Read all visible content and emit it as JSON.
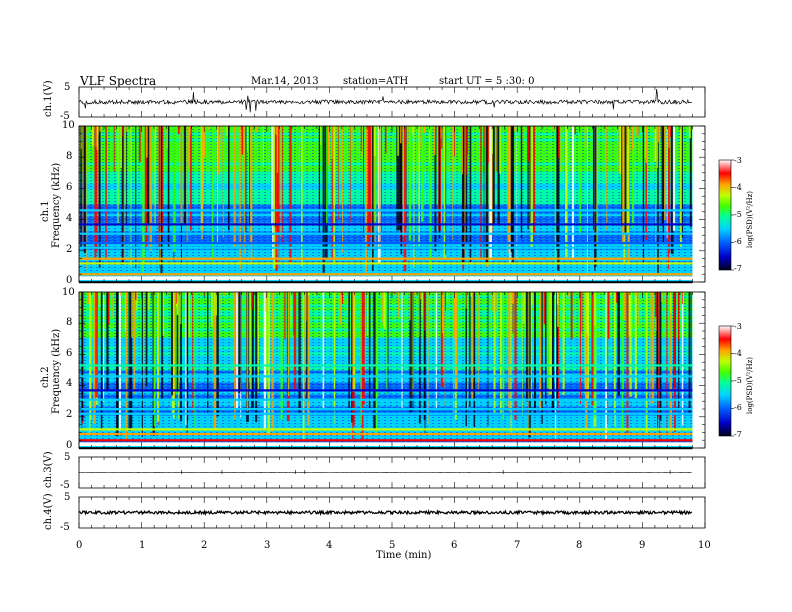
{
  "header": {
    "title": "VLF  Spectra",
    "date": "Mar.14, 2013",
    "station": "station=ATH",
    "start_ut": "start  UT  =   5  :30: 0"
  },
  "x_axis": {
    "label": "Time  (min)",
    "ticks": [
      "0",
      "1",
      "2",
      "3",
      "4",
      "5",
      "6",
      "7",
      "8",
      "9",
      "10"
    ]
  },
  "panels": {
    "ch1_wave": {
      "label": "ch.1(V)",
      "ticks": [
        "5",
        "-5"
      ]
    },
    "ch1_spec": {
      "label_top": "ch.1",
      "label": "Frequency  (kHz)",
      "ticks": [
        "10",
        "8",
        "6",
        "4",
        "2",
        "0"
      ]
    },
    "ch2_spec": {
      "label_top": "ch.2",
      "label": "Frequency  (kHz)",
      "ticks": [
        "10",
        "8",
        "6",
        "4",
        "2",
        "0"
      ]
    },
    "ch3_wave": {
      "label": "ch.3(V)",
      "ticks": [
        "5",
        "-5"
      ]
    },
    "ch4_wave": {
      "label": "ch.4(V)",
      "ticks": [
        "5",
        "-5"
      ]
    }
  },
  "colorbar": {
    "label": "log(PSD)(V²/Hz)",
    "ticks": [
      "-3",
      "-4",
      "-5",
      "-6",
      "-7"
    ]
  },
  "chart_data": {
    "type": "heatmap",
    "title": "VLF  Spectra",
    "xlabel": "Time  (min)",
    "xlim": [
      0,
      10
    ],
    "data_end_min": 9.8,
    "panels": [
      {
        "name": "ch.1(V)",
        "kind": "waveform",
        "ylim": [
          -5,
          5
        ]
      },
      {
        "name": "ch.1",
        "kind": "spectrogram",
        "ylabel": "Frequency  (kHz)",
        "ylim": [
          0,
          10
        ],
        "band_freq_khz": [
          0.3,
          0.5,
          1.2,
          1.5,
          2.2,
          2.5,
          3.1,
          3.7,
          4.6
        ],
        "band_log_psd": [
          -3.3,
          -4.0,
          -4.3,
          -4.0,
          -5.8,
          -6.0,
          -5.7,
          -6.2,
          -5.5
        ]
      },
      {
        "name": "ch.2",
        "kind": "spectrogram",
        "ylabel": "Frequency  (kHz)",
        "ylim": [
          0,
          10
        ],
        "band_freq_khz": [
          0.3,
          0.5,
          0.9,
          1.2,
          2.2,
          2.5,
          3.1,
          3.7,
          4.6,
          5.3
        ],
        "band_log_psd": [
          -3.3,
          -3.8,
          -4.0,
          -4.3,
          -5.5,
          -5.8,
          -5.6,
          -6.3,
          -5.5,
          -5.3
        ]
      },
      {
        "name": "ch.3(V)",
        "kind": "waveform",
        "ylim": [
          -5,
          5
        ],
        "level": 0
      },
      {
        "name": "ch.4(V)",
        "kind": "waveform",
        "ylim": [
          -5,
          5
        ],
        "level": 0
      }
    ],
    "colorbar": {
      "label": "log(PSD)(V²/Hz)",
      "range": [
        -7,
        -3
      ],
      "colors": [
        "#00001a",
        "#0000c8",
        "#0060ff",
        "#00d0ff",
        "#00ffa0",
        "#40ff00",
        "#c0ff00",
        "#ffa000",
        "#ff0000",
        "#ffffff"
      ]
    }
  }
}
